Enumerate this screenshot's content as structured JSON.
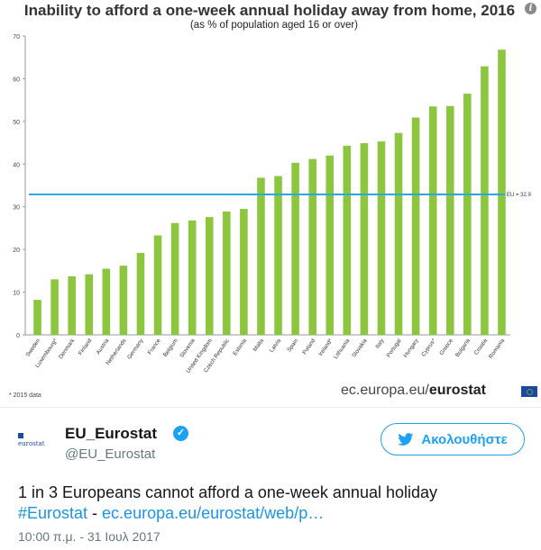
{
  "chart_title": "Inability to afford a one-week annual holiday away from home, 2016",
  "chart_subtitle": "(as % of population aged 16 or over)",
  "chart_data": {
    "type": "bar",
    "categories": [
      "Sweden",
      "Luxembourg*",
      "Denmark",
      "Finland",
      "Austria",
      "Netherlands",
      "Germany",
      "France",
      "Belgium",
      "Slovenia",
      "United Kingdom",
      "Czech Republic",
      "Estonia",
      "Malta",
      "Latvia",
      "Spain",
      "Poland",
      "Ireland*",
      "Lithuania",
      "Slovakia",
      "Italy",
      "Portugal",
      "Hungary",
      "Cyprus*",
      "Greece",
      "Bulgaria",
      "Croatia",
      "Romania"
    ],
    "values": [
      8.2,
      13.0,
      13.7,
      14.2,
      15.5,
      16.2,
      19.2,
      23.3,
      26.2,
      26.8,
      27.6,
      28.9,
      29.5,
      36.8,
      37.2,
      40.3,
      41.2,
      42.0,
      44.3,
      44.9,
      45.3,
      47.3,
      50.9,
      53.5,
      53.6,
      56.5,
      62.9,
      66.8
    ],
    "ylim": [
      0,
      70
    ],
    "yticks": [
      0,
      10,
      20,
      30,
      40,
      50,
      60,
      70
    ],
    "reference_line": {
      "label": "EU = 32.9",
      "value": 32.9
    },
    "bar_color": "#8cc63f",
    "line_color": "#29a9e0",
    "grid": false
  },
  "footnote": "* 2015 data",
  "source_logo": {
    "domain": "ec.europa.eu/",
    "brand": "eurostat"
  },
  "tweet": {
    "avatar_text": "eurostat",
    "display_name": "EU_Eurostat",
    "handle": "@EU_Eurostat",
    "follow_label": "Ακολουθήστε",
    "text_line1": "1 in 3 Europeans cannot afford a one-week annual holiday",
    "hashtag": "#Eurostat",
    "separator": " - ",
    "link": "ec.europa.eu/eurostat/web/p…",
    "timestamp": "10:00 π.μ. - 31 Ιουλ 2017"
  },
  "colors": {
    "twitter_blue": "#1da1f2",
    "link_blue": "#1b95e0"
  }
}
